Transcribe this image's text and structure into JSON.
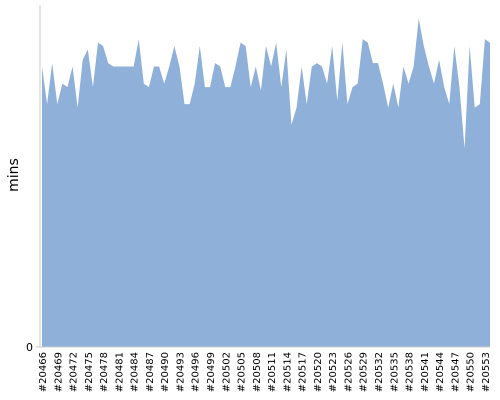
{
  "chart_data": {
    "type": "area",
    "y_label": "mins",
    "categories": [
      "#20466",
      null,
      null,
      "#20469",
      null,
      null,
      "#20472",
      null,
      null,
      "#20475",
      null,
      null,
      "#20478",
      null,
      null,
      "#20481",
      null,
      null,
      "#20484",
      null,
      null,
      "#20487",
      null,
      null,
      "#20490",
      null,
      null,
      "#20493",
      null,
      null,
      "#20496",
      null,
      null,
      "#20499",
      null,
      null,
      "#20502",
      null,
      null,
      "#20505",
      null,
      null,
      "#20508",
      null,
      null,
      "#20511",
      null,
      null,
      "#20514",
      null,
      null,
      "#20517",
      null,
      null,
      "#20520",
      null,
      null,
      "#20523",
      null,
      null,
      "#20526",
      null,
      null,
      "#20529",
      null,
      null,
      "#20532",
      null,
      null,
      "#20535",
      null,
      null,
      "#20538",
      null,
      null,
      "#20541",
      null,
      null,
      "#20544",
      null,
      null,
      "#20547",
      null,
      null,
      "#20550",
      null,
      null,
      "#20553",
      null
    ],
    "values": [
      82,
      71,
      83,
      71,
      77,
      76,
      82,
      70,
      84,
      87,
      76,
      89,
      88,
      83,
      82,
      82,
      82,
      82,
      82,
      90,
      77,
      76,
      82,
      82,
      77,
      82,
      88,
      82,
      71,
      71,
      77,
      88,
      76,
      76,
      83,
      82,
      76,
      76,
      82,
      89,
      88,
      76,
      82,
      75,
      88,
      82,
      89,
      76,
      87,
      65,
      70,
      82,
      71,
      82,
      83,
      82,
      77,
      88,
      72,
      89,
      71,
      76,
      77,
      90,
      89,
      83,
      83,
      77,
      70,
      77,
      70,
      82,
      77,
      82,
      96,
      88,
      82,
      77,
      84,
      76,
      71,
      88,
      76,
      58,
      88,
      70,
      71,
      90,
      89
    ],
    "color": "#8fb0d9",
    "ylim": [
      0,
      100
    ],
    "yticks": [
      0
    ]
  }
}
